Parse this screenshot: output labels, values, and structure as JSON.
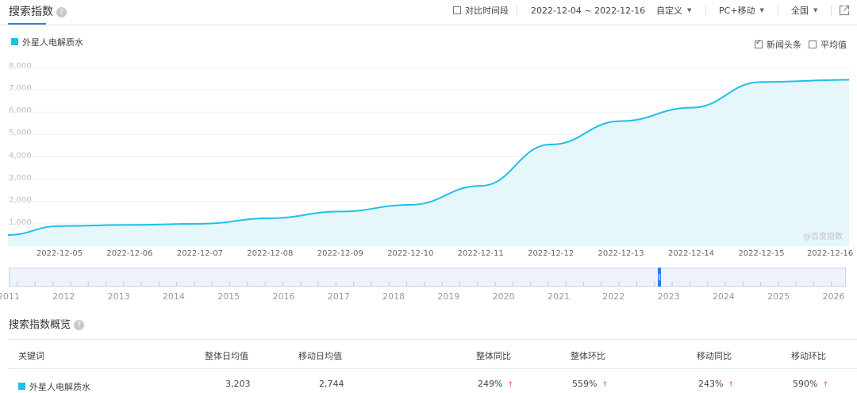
{
  "header": {
    "title": "搜索指数",
    "help": "?",
    "compare_label": "对比时间段",
    "date_range": "2022-12-04 ~ 2022-12-16",
    "custom_label": "自定义",
    "device_label": "PC+移动",
    "region_label": "全国",
    "export_icon": "share-icon"
  },
  "legend": {
    "series_name": "外星人电解质水",
    "color": "#1fc0e6"
  },
  "options": {
    "news_label": "新闻头条",
    "news_checked": true,
    "avg_label": "平均值",
    "avg_checked": false
  },
  "watermark": "@百度指数",
  "chart_data": {
    "type": "area",
    "series": [
      {
        "name": "外星人电解质水",
        "color": "#1fc0e6",
        "x": [
          "2022-12-04 12:00",
          "2022-12-05",
          "2022-12-06",
          "2022-12-07",
          "2022-12-08",
          "2022-12-09",
          "2022-12-10",
          "2022-12-11",
          "2022-12-12",
          "2022-12-13",
          "2022-12-14",
          "2022-12-15",
          "2022-12-16"
        ],
        "y": [
          500,
          900,
          950,
          1000,
          1250,
          1550,
          1850,
          2700,
          4550,
          5600,
          6200,
          7350,
          7450
        ]
      }
    ],
    "x_ticks": [
      "2022-12-05",
      "2022-12-06",
      "2022-12-07",
      "2022-12-08",
      "2022-12-09",
      "2022-12-10",
      "2022-12-11",
      "2022-12-12",
      "2022-12-13",
      "2022-12-14",
      "2022-12-15",
      "2022-12-16"
    ],
    "y_ticks": [
      "8,000",
      "7,000",
      "6,000",
      "5,000",
      "4,000",
      "3,000",
      "2,000",
      "1,000"
    ],
    "ylim": [
      0,
      8000
    ],
    "grid": true,
    "legend_position": "top-left"
  },
  "timeline": {
    "years": [
      "2011",
      "2012",
      "2013",
      "2014",
      "2015",
      "2016",
      "2017",
      "2018",
      "2019",
      "2020",
      "2021",
      "2022",
      "2023",
      "2024",
      "2025",
      "2026"
    ],
    "selected": "2023"
  },
  "overview": {
    "title": "搜索指数概览",
    "help": "?",
    "headers": {
      "keyword": "关键词",
      "total_avg": "整体日均值",
      "mobile_avg": "移动日均值",
      "total_yoy": "整体同比",
      "total_mom": "整体环比",
      "mobile_yoy": "移动同比",
      "mobile_mom": "移动环比"
    },
    "row": {
      "keyword": "外星人电解质水",
      "total_avg": "3,203",
      "mobile_avg": "2,744",
      "total_yoy": "249%",
      "total_mom": "559%",
      "mobile_yoy": "243%",
      "mobile_mom": "590%",
      "arrow": "↑"
    }
  }
}
